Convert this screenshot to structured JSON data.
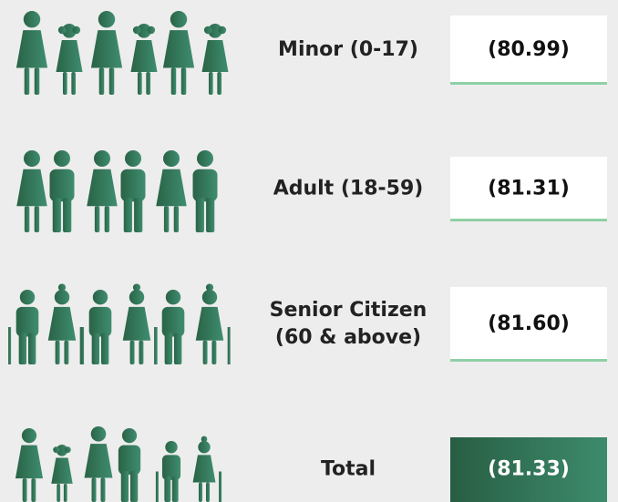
{
  "rows": [
    {
      "label": [
        "Minor (0-17)"
      ],
      "value": "(80.99)"
    },
    {
      "label": [
        "Adult (18-59)"
      ],
      "value": "(81.31)"
    },
    {
      "label": [
        "Senior Citizen",
        "(60 & above)"
      ],
      "value": "(81.60)"
    },
    {
      "label": [
        "Total"
      ],
      "value": "(81.33)"
    }
  ]
}
